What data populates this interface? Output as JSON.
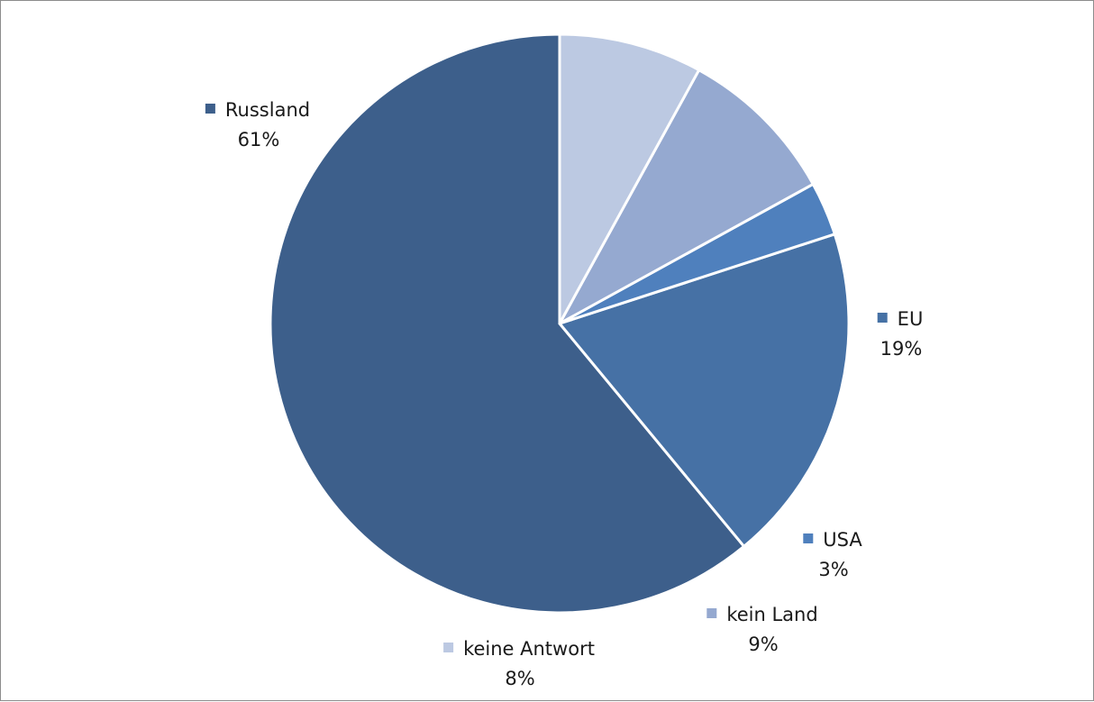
{
  "chart_data": {
    "type": "pie",
    "title": "",
    "categories": [
      "Russland",
      "EU",
      "USA",
      "kein Land",
      "keine Antwort"
    ],
    "values": [
      61,
      19,
      3,
      9,
      8
    ],
    "value_labels": [
      "61%",
      "19%",
      "3%",
      "9%",
      "8%"
    ],
    "colors": [
      "#3d5f8b",
      "#4671a5",
      "#4f80bd",
      "#95a9d0",
      "#bcc9e2"
    ],
    "start_angle_deg": 90,
    "direction": "counterclockwise",
    "data_labels": "category name with legend key, percentage below"
  }
}
